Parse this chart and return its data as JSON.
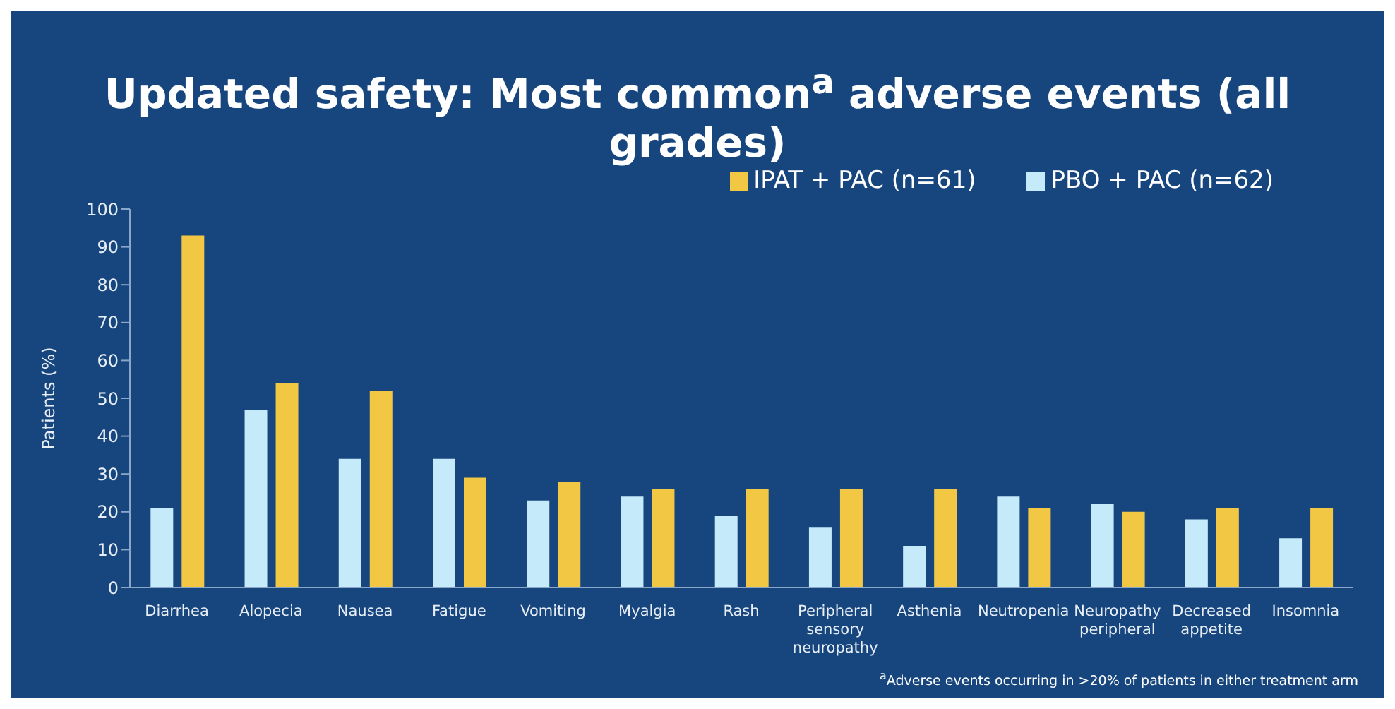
{
  "chart_data": {
    "type": "bar",
    "title": "Updated safety: Most common$^{a}$ adverse events (all grades)",
    "ylabel": "Patients (%)",
    "categories": [
      "Diarrhea",
      "Alopecia",
      "Nausea",
      "Fatigue",
      "Vomiting",
      "Myalgia",
      "Rash",
      "Peripheral sensory neuropathy",
      "Asthenia",
      "Neutropenia",
      "Neuropathy peripheral",
      "Decreased appetite",
      "Insomnia"
    ],
    "series": [
      {
        "name": "PBO + PAC (n=62)",
        "color": "#c5ebfb",
        "values": [
          21,
          47,
          34,
          34,
          23,
          24,
          19,
          16,
          11,
          24,
          22,
          18,
          13
        ]
      },
      {
        "name": "IPAT + PAC (n=61)",
        "color": "#f2c744",
        "values": [
          93,
          54,
          52,
          29,
          28,
          26,
          26,
          26,
          26,
          21,
          20,
          21,
          21
        ]
      }
    ],
    "ylim": [
      0,
      100
    ],
    "yticks": [
      0,
      10,
      20,
      30,
      40,
      50,
      60,
      70,
      80,
      90,
      100
    ],
    "grid": false,
    "legend": "top right",
    "annotations": [
      "$^{a}$Adverse events occurring in >20% of patients in either treatment arm"
    ]
  }
}
